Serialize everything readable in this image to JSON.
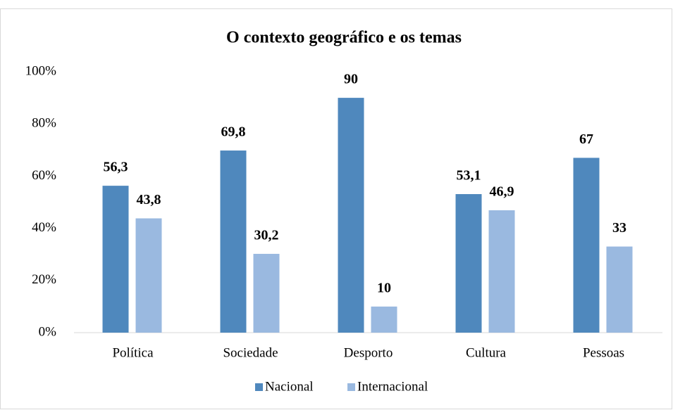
{
  "chart_data": {
    "type": "bar",
    "title": "O contexto geográfico e os temas",
    "categories": [
      "Política",
      "Sociedade",
      "Desporto",
      "Cultura",
      "Pessoas"
    ],
    "series": [
      {
        "name": "Nacional",
        "color": "#4f88bd",
        "values": [
          56.3,
          69.8,
          90,
          53.1,
          67
        ],
        "value_labels": [
          "56,3",
          "69,8",
          "90",
          "53,1",
          "67"
        ]
      },
      {
        "name": "Internacional",
        "color": "#9ab9e0",
        "values": [
          43.8,
          30.2,
          10,
          46.9,
          33
        ],
        "value_labels": [
          "43,8",
          "30,2",
          "10",
          "46,9",
          "33"
        ]
      }
    ],
    "ylim": [
      0,
      100
    ],
    "yticks": [
      {
        "value": 0,
        "label": "0%"
      },
      {
        "value": 20,
        "label": "20%"
      },
      {
        "value": 40,
        "label": "40%"
      },
      {
        "value": 60,
        "label": "60%"
      },
      {
        "value": 80,
        "label": "80%"
      },
      {
        "value": 100,
        "label": "100%"
      }
    ],
    "grid": false,
    "legend": "bottom"
  }
}
